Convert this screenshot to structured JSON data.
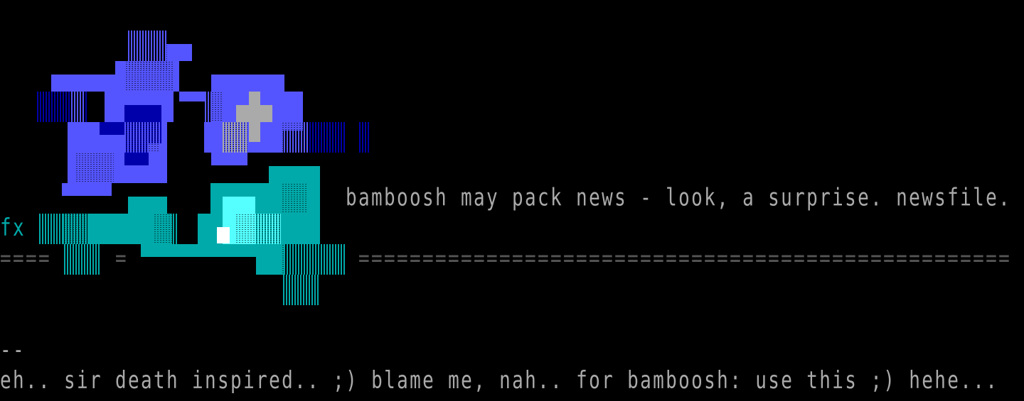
{
  "palette": {
    "background": "#000000",
    "text": "#aaaaaa",
    "dark_text": "#555555",
    "blue_light": "#5555ff",
    "blue_dark": "#0000aa",
    "cyan": "#00aaaa",
    "cyan_light": "#55ffff",
    "grey": "#aaaaaa",
    "white": "#ffffff"
  },
  "art": {
    "signature": "fx"
  },
  "header_line": {
    "text": "bamboosh may pack news - look, a surprise. newsfile."
  },
  "divider": {
    "left": "====",
    "middle": "=",
    "right": "==================================================="
  },
  "footer": {
    "dashes": "--",
    "text": "eh.. sir death inspired.. ;) blame me, nah.. for bamboosh: use this ;) hehe..."
  }
}
